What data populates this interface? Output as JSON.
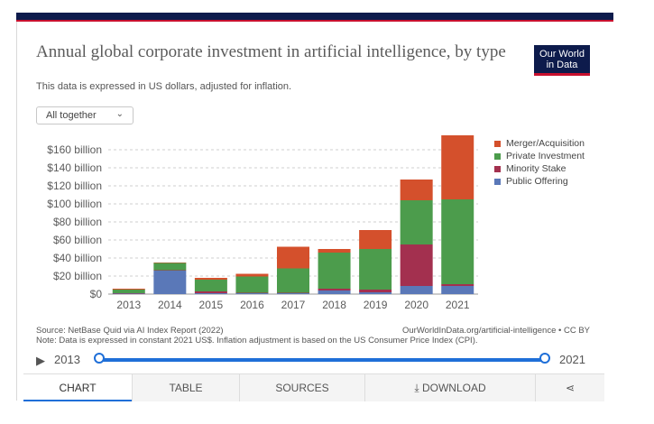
{
  "header": {
    "title": "Annual global corporate investment in artificial intelligence, by type",
    "subtitle": "This data is expressed in US dollars, adjusted for inflation.",
    "logo_line1": "Our World",
    "logo_line2": "in Data"
  },
  "controls": {
    "dropdown_label": "All together",
    "dropdown_chevron": "⌄"
  },
  "chart_data": {
    "type": "bar",
    "stacked": true,
    "categories": [
      "2013",
      "2014",
      "2015",
      "2016",
      "2017",
      "2018",
      "2019",
      "2020",
      "2021"
    ],
    "y_ticks": [
      "$0",
      "$20 billion",
      "$40 billion",
      "$60 billion",
      "$80 billion",
      "$100 billion",
      "$120 billion",
      "$140 billion",
      "$160 billion"
    ],
    "y_tick_values": [
      0,
      20,
      40,
      60,
      80,
      100,
      120,
      140,
      160
    ],
    "ylim": [
      0,
      176
    ],
    "grid": true,
    "legend_position": "right",
    "series": [
      {
        "name": "Public Offering",
        "color": "#5a78b8",
        "values": [
          0.5,
          26,
          1,
          1,
          1,
          4,
          2,
          9,
          9
        ]
      },
      {
        "name": "Minority Stake",
        "color": "#a3304f",
        "values": [
          0.5,
          0.5,
          2,
          0.5,
          0.5,
          2,
          3,
          46,
          2
        ]
      },
      {
        "name": "Private Investment",
        "color": "#4c9c4c",
        "values": [
          4,
          8,
          13,
          18,
          27,
          40,
          45,
          49,
          94
        ]
      },
      {
        "name": "Merger/Acquisition",
        "color": "#d4502c",
        "values": [
          1,
          0.5,
          2,
          3,
          24,
          4,
          21,
          23,
          71
        ]
      }
    ]
  },
  "legend_order": [
    "Merger/Acquisition",
    "Private Investment",
    "Minority Stake",
    "Public Offering"
  ],
  "footer": {
    "source": "Source: NetBase Quid via AI Index Report (2022)",
    "url": "OurWorldInData.org/artificial-intelligence • CC BY",
    "note": "Note: Data is expressed in constant 2021 US$. Inflation adjustment is based on the US Consumer Price Index (CPI)."
  },
  "timeline": {
    "play_icon": "▶",
    "start_label": "2013",
    "end_label": "2021"
  },
  "tabs": {
    "chart": "CHART",
    "table": "TABLE",
    "sources": "SOURCES",
    "download": "DOWNLOAD",
    "download_icon": "⤓",
    "share_icon": "⋖"
  }
}
